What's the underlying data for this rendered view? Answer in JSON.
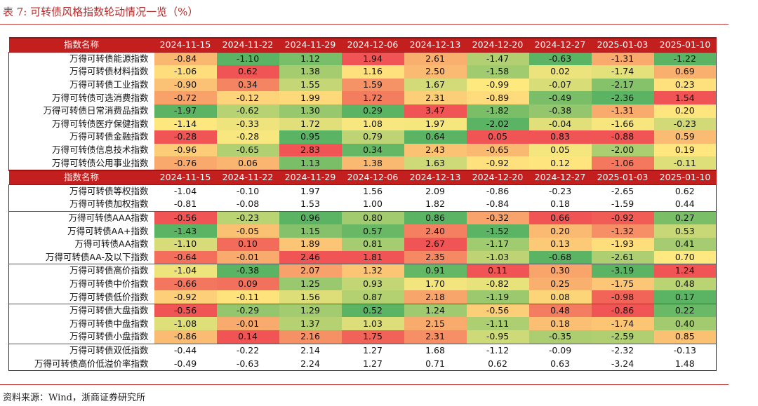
{
  "title": "表 7:   可转债风格指数轮动情况一览（%）",
  "source": "资料来源：Wind，浙商证券研究所",
  "colors": {
    "header_bg": "#c41f1f",
    "title_red": "#b42d2d",
    "scale_low": "#5bb463",
    "scale_mid": "#ffe97f",
    "scale_high": "#f05454"
  },
  "header": {
    "name": "指数名称",
    "dates": [
      "2024-11-15",
      "2024-11-22",
      "2024-11-29",
      "2024-12-06",
      "2024-12-13",
      "2024-12-20",
      "2024-12-27",
      "2025-01-03",
      "2025-01-10"
    ]
  },
  "section1": [
    {
      "name": "万得可转债能源指数",
      "values": [
        "-0.84",
        "-1.10",
        "1.12",
        "1.94",
        "2.61",
        "-1.47",
        "-0.63",
        "-1.31",
        "-1.22"
      ]
    },
    {
      "name": "万得可转债材料指数",
      "values": [
        "-1.06",
        "0.62",
        "1.38",
        "1.16",
        "2.50",
        "-1.58",
        "0.02",
        "-1.74",
        "0.69"
      ]
    },
    {
      "name": "万得可转债工业指数",
      "values": [
        "-0.90",
        "0.34",
        "1.55",
        "1.59",
        "1.67",
        "-0.99",
        "-0.07",
        "-2.17",
        "0.23"
      ]
    },
    {
      "name": "万得可转债可选消费指数",
      "values": [
        "-0.72",
        "-0.12",
        "1.99",
        "1.72",
        "2.31",
        "-0.89",
        "-0.49",
        "-2.36",
        "1.54"
      ]
    },
    {
      "name": "万得可转债日常消费品指数",
      "values": [
        "-1.97",
        "-0.62",
        "1.30",
        "0.29",
        "3.47",
        "-1.82",
        "-0.38",
        "-1.31",
        "0.20"
      ]
    },
    {
      "name": "万得可转债医疗保健指数",
      "values": [
        "-1.14",
        "-0.33",
        "1.72",
        "1.08",
        "1.97",
        "-2.02",
        "-0.04",
        "-1.66",
        "-0.23"
      ]
    },
    {
      "name": "万得可转债金融指数",
      "values": [
        "-0.28",
        "-0.28",
        "0.95",
        "0.79",
        "0.64",
        "0.05",
        "0.83",
        "-0.88",
        "0.59"
      ]
    },
    {
      "name": "万得可转债信息技术指数",
      "values": [
        "-0.96",
        "-0.65",
        "2.83",
        "0.34",
        "2.43",
        "-0.65",
        "0.05",
        "-2.00",
        "0.19"
      ]
    },
    {
      "name": "万得可转债公用事业指数",
      "values": [
        "-0.76",
        "0.06",
        "1.13",
        "1.38",
        "1.63",
        "-0.92",
        "0.12",
        "-1.06",
        "-0.11"
      ]
    }
  ],
  "section2": [
    {
      "name": "万得可转债等权指数",
      "values": [
        "-1.04",
        "-0.10",
        "1.97",
        "1.56",
        "2.09",
        "-0.86",
        "-0.23",
        "-2.65",
        "0.62"
      ],
      "plain": true
    },
    {
      "name": "万得可转债加权指数",
      "values": [
        "-0.81",
        "-0.08",
        "1.53",
        "1.00",
        "1.82",
        "-0.84",
        "0.18",
        "-1.59",
        "0.44"
      ],
      "plain": true
    },
    {
      "name": "万得可转债AAA指数",
      "values": [
        "-0.56",
        "-0.23",
        "0.96",
        "0.80",
        "0.86",
        "-0.32",
        "0.66",
        "-0.92",
        "0.27"
      ],
      "sep": true
    },
    {
      "name": "万得可转债AA+指数",
      "values": [
        "-1.43",
        "-0.05",
        "1.15",
        "0.57",
        "2.40",
        "-1.52",
        "0.20",
        "-1.32",
        "0.53"
      ]
    },
    {
      "name": "万得可转债AA指数",
      "values": [
        "-1.10",
        "0.10",
        "1.89",
        "0.81",
        "2.67",
        "-1.17",
        "0.13",
        "-1.93",
        "0.41"
      ]
    },
    {
      "name": "万得可转债AA-及以下指数",
      "values": [
        "-0.64",
        "-0.01",
        "2.46",
        "1.81",
        "2.35",
        "-1.03",
        "-0.68",
        "-2.61",
        "0.70"
      ]
    },
    {
      "name": "万得可转债高价指数",
      "values": [
        "-1.04",
        "-0.38",
        "2.07",
        "1.32",
        "0.91",
        "0.11",
        "0.30",
        "-3.19",
        "1.24"
      ],
      "sep": true
    },
    {
      "name": "万得可转债中价指数",
      "values": [
        "-0.66",
        "0.09",
        "1.25",
        "0.93",
        "1.70",
        "-0.82",
        "0.25",
        "-1.75",
        "0.48"
      ]
    },
    {
      "name": "万得可转债低价指数",
      "values": [
        "-0.92",
        "-0.11",
        "1.56",
        "0.87",
        "2.18",
        "-1.19",
        "0.08",
        "-0.98",
        "0.17"
      ]
    },
    {
      "name": "万得可转债大盘指数",
      "values": [
        "-0.56",
        "-0.29",
        "1.29",
        "0.52",
        "1.24",
        "-0.56",
        "0.48",
        "-0.86",
        "0.22"
      ],
      "sep": true
    },
    {
      "name": "万得可转债中盘指数",
      "values": [
        "-1.08",
        "-0.01",
        "1.37",
        "1.03",
        "2.15",
        "-1.11",
        "0.18",
        "-1.74",
        "0.40"
      ]
    },
    {
      "name": "万得可转债小盘指数",
      "values": [
        "-0.86",
        "0.14",
        "2.16",
        "1.75",
        "2.31",
        "-0.95",
        "-0.35",
        "-2.59",
        "0.85"
      ]
    },
    {
      "name": "万得可转债双低指数",
      "values": [
        "-0.44",
        "-0.22",
        "2.14",
        "1.27",
        "1.68",
        "-1.12",
        "-0.09",
        "-2.32",
        "-0.13"
      ],
      "plain": true,
      "sep": true
    },
    {
      "name": "万得可转债高价低溢价率指数",
      "values": [
        "-0.49",
        "-0.63",
        "2.24",
        "1.27",
        "0.71",
        "0.62",
        "0.63",
        "-3.24",
        "1.48"
      ],
      "plain": true
    }
  ]
}
